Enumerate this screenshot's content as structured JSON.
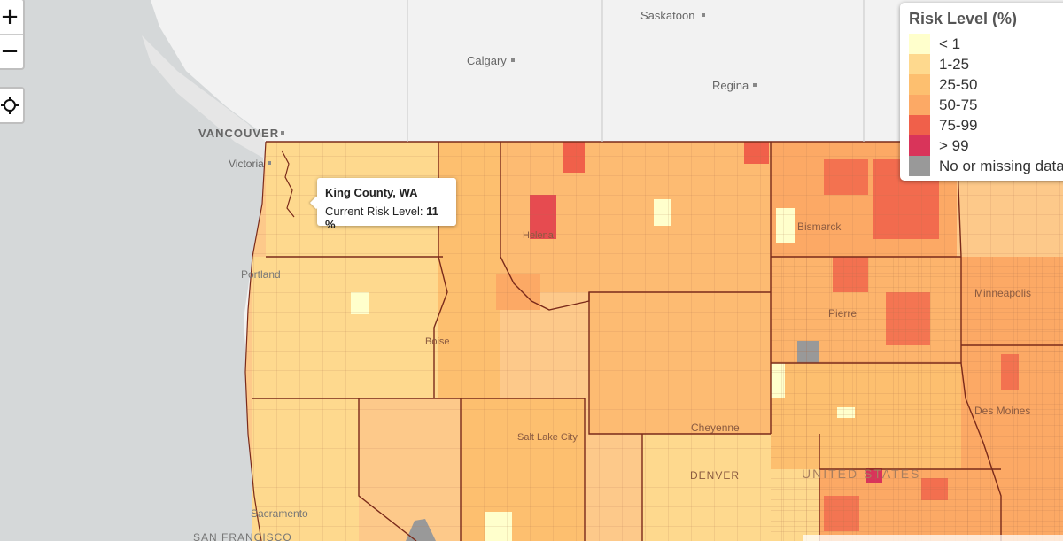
{
  "controls": {
    "zoom_in": "+",
    "zoom_out": "−"
  },
  "tooltip": {
    "county": "King County, WA",
    "label": "Current Risk Level:",
    "value": "11 %"
  },
  "legend": {
    "title": "Risk Level (%)",
    "items": [
      {
        "label": "< 1",
        "color": "#ffffcc"
      },
      {
        "label": "1-25",
        "color": "#fed98e"
      },
      {
        "label": "25-50",
        "color": "#fdbf6f"
      },
      {
        "label": "50-75",
        "color": "#fca965"
      },
      {
        "label": "75-99",
        "color": "#f0604a"
      },
      {
        "label": "> 99",
        "color": "#d9345a"
      },
      {
        "label": "No or missing data",
        "color": "#999999"
      }
    ]
  },
  "places": {
    "saskatoon": "Saskatoon",
    "calgary": "Calgary",
    "regina": "Regina",
    "vancouver": "VANCOUVER",
    "victoria": "Victoria",
    "portland": "Portland",
    "helena": "Helena",
    "bismarck": "Bismarck",
    "pierre": "Pierre",
    "boise": "Boise",
    "salt_lake_city": "Salt Lake City",
    "cheyenne": "Cheyenne",
    "denver": "DENVER",
    "united_states": "UNITED STATES",
    "des_moines": "Des Moines",
    "minneapolis": "Minneapolis",
    "sacramento": "Sacramento",
    "san_francisco": "SAN FRANCISCO"
  }
}
